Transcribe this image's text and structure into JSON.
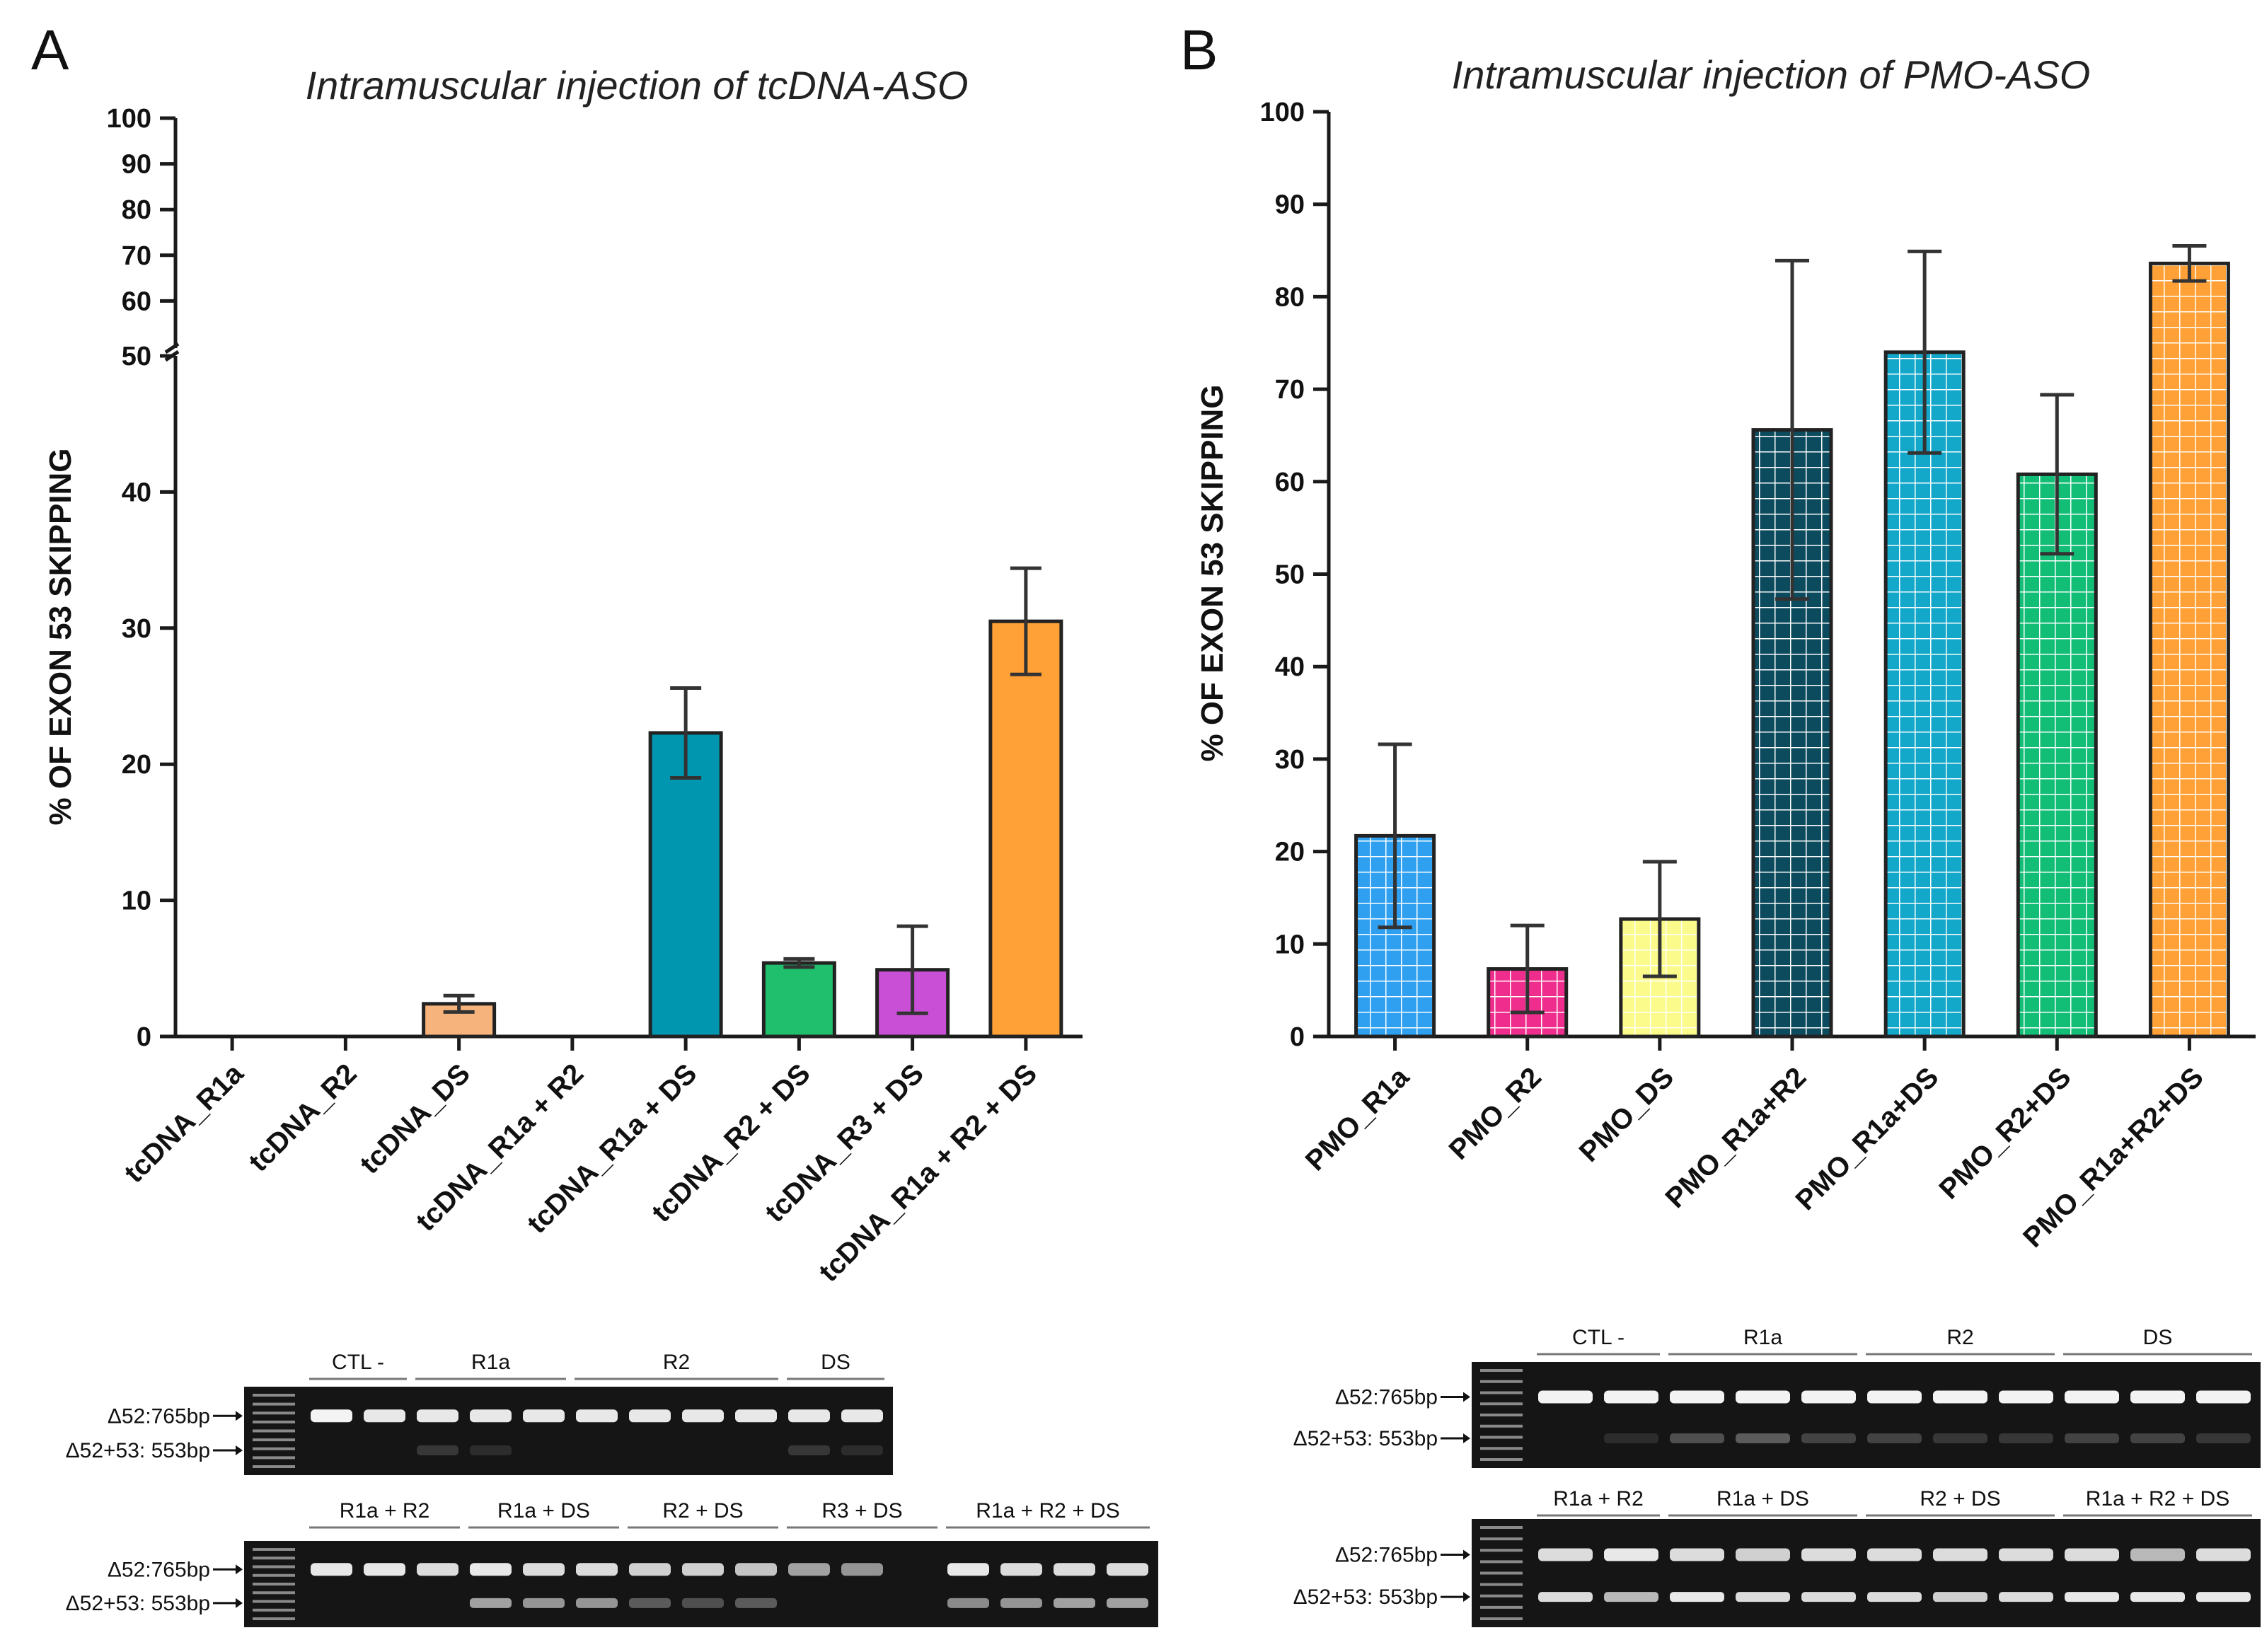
{
  "chart_data": [
    {
      "panel": "A",
      "type": "bar",
      "title": "Intramuscular injection of tcDNA-ASO",
      "ylabel": "% OF EXON 53 SKIPPING",
      "xlabel": "",
      "ylim": [
        0,
        100
      ],
      "axis_break": [
        50,
        60
      ],
      "yticks_lower": [
        0,
        10,
        20,
        30,
        40,
        50
      ],
      "yticks_upper": [
        60,
        70,
        80,
        90,
        100
      ],
      "categories": [
        "tcDNA_R1a",
        "tcDNA_R2",
        "tcDNA_DS",
        "tcDNA_R1a + R2",
        "tcDNA_R1a + DS",
        "tcDNA_R2 + DS",
        "tcDNA_R3 + DS",
        "tcDNA_R1a + R2 + DS"
      ],
      "values": [
        0,
        0,
        2.4,
        0,
        22.3,
        5.4,
        4.9,
        30.5
      ],
      "errors": [
        0,
        0,
        0.6,
        0,
        3.3,
        0.3,
        3.2,
        3.9
      ],
      "colors": [
        "#f6b47c",
        "#f6b47c",
        "#f6b47c",
        "#f6b47c",
        "#0096b0",
        "#1fbf6e",
        "#c94fd6",
        "#ffa136"
      ],
      "pattern": "solid"
    },
    {
      "panel": "B",
      "type": "bar",
      "title": "Intramuscular injection of PMO-ASO",
      "ylabel": "% OF EXON 53 SKIPPING",
      "xlabel": "",
      "ylim": [
        0,
        100
      ],
      "yticks": [
        0,
        10,
        20,
        30,
        40,
        50,
        60,
        70,
        80,
        90,
        100
      ],
      "categories": [
        "PMO_R1a",
        "PMO_R2",
        "PMO_DS",
        "PMO_R1a+R2",
        "PMO_R1a+DS",
        "PMO_R2+DS",
        "PMO_R1a+R2+DS"
      ],
      "values": [
        21.7,
        7.3,
        12.7,
        65.6,
        74.0,
        60.8,
        83.6
      ],
      "errors": [
        9.9,
        4.7,
        6.2,
        18.3,
        10.9,
        8.6,
        1.9
      ],
      "colors": [
        "#2f9ff0",
        "#ee2d8c",
        "#fbfb8c",
        "#0c4a5e",
        "#13a7c9",
        "#12bd76",
        "#ffa136"
      ],
      "pattern": "grid"
    }
  ],
  "gels": {
    "A": {
      "top": {
        "groups": [
          "CTL -",
          "R1a",
          "R2",
          "DS"
        ],
        "markers": [
          "Δ52:765bp",
          "Δ52+53: 553bp"
        ]
      },
      "bottom": {
        "groups": [
          "R1a + R2",
          "R1a + DS",
          "R2 + DS",
          "R3 + DS",
          "R1a + R2 + DS"
        ],
        "markers": [
          "Δ52:765bp",
          "Δ52+53: 553bp"
        ]
      }
    },
    "B": {
      "top": {
        "groups": [
          "CTL -",
          "R1a",
          "R2",
          "DS"
        ],
        "markers": [
          "Δ52:765bp",
          "Δ52+53: 553bp"
        ]
      },
      "bottom": {
        "groups": [
          "R1a + R2",
          "R1a + DS",
          "R2 + DS",
          "R1a + R2 + DS"
        ],
        "markers": [
          "Δ52:765bp",
          "Δ52+53: 553bp"
        ]
      }
    }
  },
  "panel_letters": [
    "A",
    "B"
  ]
}
